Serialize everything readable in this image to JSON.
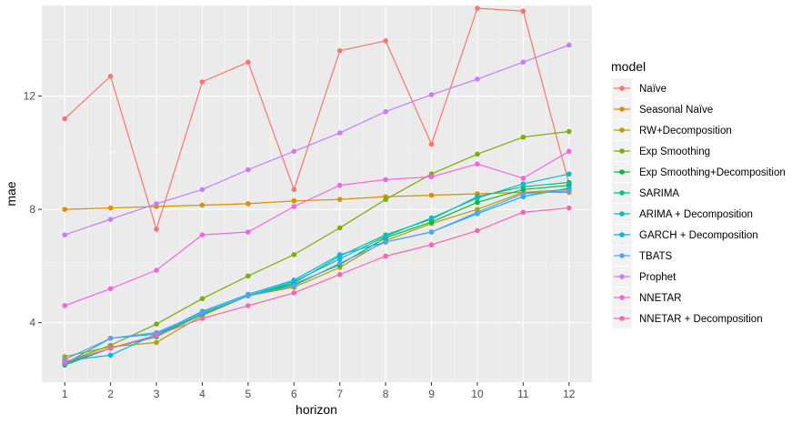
{
  "chart_data": {
    "type": "line",
    "xlabel": "horizon",
    "ylabel": "mae",
    "legend_title": "model",
    "legend_position": "right",
    "grid": true,
    "x": [
      1,
      2,
      3,
      4,
      5,
      6,
      7,
      8,
      9,
      10,
      11,
      12
    ],
    "x_ticks": [
      "1",
      "2",
      "3",
      "4",
      "5",
      "6",
      "7",
      "8",
      "9",
      "10",
      "11",
      "12"
    ],
    "xlim": [
      0.5,
      12.5
    ],
    "y_ticks": [
      4,
      8,
      12
    ],
    "ylim": [
      1.9,
      15.2
    ],
    "series": [
      {
        "name": "Naïve",
        "color": "#F8766D",
        "values": [
          11.2,
          12.7,
          7.3,
          12.5,
          13.2,
          8.7,
          13.6,
          13.95,
          10.3,
          15.1,
          15.0,
          8.9
        ]
      },
      {
        "name": "Seasonal Naïve",
        "color": "#DE8C00",
        "values": [
          8.0,
          8.05,
          8.1,
          8.15,
          8.2,
          8.3,
          8.35,
          8.45,
          8.5,
          8.55,
          8.6,
          8.6
        ]
      },
      {
        "name": "RW+Decomposition",
        "color": "#B79F00",
        "values": [
          2.8,
          3.15,
          3.3,
          4.25,
          4.95,
          5.25,
          5.95,
          6.9,
          7.5,
          8.0,
          8.6,
          8.7
        ]
      },
      {
        "name": "Exp Smoothing",
        "color": "#7CAE00",
        "values": [
          2.6,
          3.2,
          3.95,
          4.85,
          5.65,
          6.4,
          7.35,
          8.35,
          9.25,
          9.95,
          10.55,
          10.75
        ]
      },
      {
        "name": "Exp Smoothing+Decomposition",
        "color": "#00BA38",
        "values": [
          2.55,
          3.1,
          3.55,
          4.3,
          4.95,
          5.35,
          6.05,
          7.0,
          7.55,
          8.25,
          8.7,
          8.85
        ]
      },
      {
        "name": "SARIMA",
        "color": "#00C08B",
        "values": [
          2.5,
          3.1,
          3.5,
          4.3,
          4.95,
          5.4,
          6.35,
          7.1,
          7.65,
          8.45,
          8.8,
          8.95
        ]
      },
      {
        "name": "ARIMA + Decomposition",
        "color": "#00BFC4",
        "values": [
          2.55,
          3.45,
          3.6,
          4.35,
          4.95,
          5.45,
          6.25,
          7.05,
          7.7,
          8.4,
          8.9,
          9.25
        ]
      },
      {
        "name": "GARCH + Decomposition",
        "color": "#00B4F0",
        "values": [
          2.65,
          2.85,
          3.6,
          4.4,
          5.0,
          5.5,
          6.4,
          6.85,
          7.2,
          7.85,
          8.45,
          8.75
        ]
      },
      {
        "name": "TBATS",
        "color": "#619CFF",
        "values": [
          2.7,
          3.45,
          3.65,
          4.35,
          4.95,
          5.3,
          6.1,
          6.85,
          7.2,
          7.9,
          8.55,
          8.65
        ]
      },
      {
        "name": "Prophet",
        "color": "#C77CFF",
        "values": [
          7.1,
          7.65,
          8.2,
          8.7,
          9.4,
          10.05,
          10.7,
          11.45,
          12.05,
          12.6,
          13.2,
          13.8
        ]
      },
      {
        "name": "NNETAR",
        "color": "#F564E3",
        "values": [
          4.6,
          5.2,
          5.85,
          7.1,
          7.2,
          8.1,
          8.85,
          9.05,
          9.15,
          9.6,
          9.1,
          10.05
        ]
      },
      {
        "name": "NNETAR + Decomposition",
        "color": "#FF64B0",
        "values": [
          2.6,
          3.1,
          3.55,
          4.15,
          4.6,
          5.05,
          5.7,
          6.35,
          6.75,
          7.25,
          7.9,
          8.05
        ]
      }
    ]
  }
}
